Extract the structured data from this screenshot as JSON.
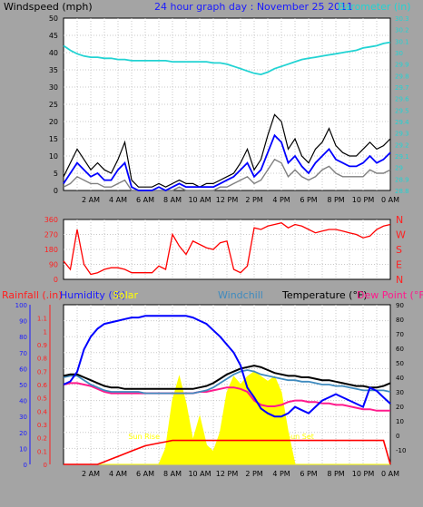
{
  "header": {
    "left_title": "Windspeed (mph)",
    "center_title": "24 hour graph day : November 25 2011",
    "right_title": "Barometer (in)"
  },
  "colors": {
    "background": "#a4a4a4",
    "plot_bg": "#ffffff",
    "grid": "#c8c8c8",
    "windspeed_gust": "#000000",
    "windspeed_avg": "#0000ff",
    "windspeed_low": "#808080",
    "barometer": "#22d3d3",
    "direction": "#ff0000",
    "temperature": "#000000",
    "humidity": "#0000ff",
    "windchill": "#3f8bbf",
    "dew_point": "#ff1a8c",
    "rainfall": "#ff0000",
    "solar": "#ffff00"
  },
  "x_ticks": [
    "2 AM",
    "4 AM",
    "6 AM",
    "8 AM",
    "10 AM",
    "12 PM",
    "2 PM",
    "4 PM",
    "6 PM",
    "8 PM",
    "10 PM",
    "0 AM"
  ],
  "chart_data": [
    {
      "type": "line",
      "title": "24 hour graph day : November 25 2011",
      "ylabel": "Windspeed (mph)",
      "y2label": "Barometer (in)",
      "ylim": [
        0,
        50
      ],
      "y2lim": [
        28.8,
        30.3
      ],
      "y_ticks": [
        "0",
        "5",
        "10",
        "15",
        "20",
        "25",
        "30",
        "35",
        "40",
        "45",
        "50"
      ],
      "y2_ticks": [
        "28.8",
        "28.9",
        "29",
        "29.1",
        "29.2",
        "29.3",
        "29.4",
        "29.5",
        "29.6",
        "29.7",
        "29.8",
        "29.9",
        "30",
        "30.1",
        "30.2",
        "30.3"
      ],
      "x_hours": [
        0,
        0.5,
        1,
        1.5,
        2,
        2.5,
        3,
        3.5,
        4,
        4.5,
        5,
        5.5,
        6,
        6.5,
        7,
        7.5,
        8,
        8.5,
        9,
        9.5,
        10,
        10.5,
        11,
        11.5,
        12,
        12.5,
        13,
        13.5,
        14,
        14.5,
        15,
        15.5,
        16,
        16.5,
        17,
        17.5,
        18,
        18.5,
        19,
        19.5,
        20,
        20.5,
        21,
        21.5,
        22,
        22.5,
        23,
        23.5,
        24
      ],
      "series": [
        {
          "name": "gust",
          "axis": "left",
          "values": [
            4,
            8,
            12,
            9,
            6,
            8,
            6,
            5,
            9,
            14,
            3,
            1,
            1,
            1,
            2,
            1,
            2,
            3,
            2,
            2,
            1,
            2,
            2,
            3,
            4,
            5,
            8,
            12,
            6,
            9,
            16,
            22,
            20,
            12,
            15,
            10,
            8,
            12,
            14,
            18,
            13,
            11,
            10,
            10,
            12,
            14,
            12,
            13,
            15
          ]
        },
        {
          "name": "average",
          "axis": "left",
          "values": [
            2,
            5,
            8,
            6,
            4,
            5,
            3,
            3,
            6,
            8,
            1,
            0,
            0,
            0,
            1,
            0,
            1,
            2,
            1,
            1,
            1,
            1,
            1,
            2,
            3,
            4,
            6,
            8,
            4,
            6,
            11,
            16,
            14,
            8,
            10,
            7,
            5,
            8,
            10,
            12,
            9,
            8,
            7,
            7,
            8,
            10,
            8,
            9,
            11
          ]
        },
        {
          "name": "low",
          "axis": "left",
          "values": [
            1,
            2,
            4,
            3,
            2,
            2,
            1,
            1,
            2,
            3,
            0,
            0,
            0,
            0,
            0,
            0,
            0,
            1,
            0,
            0,
            0,
            0,
            0,
            1,
            1,
            2,
            3,
            4,
            2,
            3,
            6,
            9,
            8,
            4,
            6,
            4,
            3,
            4,
            6,
            7,
            5,
            4,
            4,
            4,
            4,
            6,
            5,
            5,
            6
          ]
        },
        {
          "name": "barometer",
          "axis": "right",
          "values": [
            30.06,
            30.02,
            29.99,
            29.97,
            29.96,
            29.96,
            29.95,
            29.95,
            29.94,
            29.94,
            29.93,
            29.93,
            29.93,
            29.93,
            29.93,
            29.93,
            29.92,
            29.92,
            29.92,
            29.92,
            29.92,
            29.92,
            29.91,
            29.91,
            29.9,
            29.88,
            29.86,
            29.84,
            29.82,
            29.81,
            29.83,
            29.86,
            29.88,
            29.9,
            29.92,
            29.94,
            29.95,
            29.96,
            29.97,
            29.98,
            29.99,
            30,
            30.01,
            30.02,
            30.04,
            30.05,
            30.06,
            30.08,
            30.09
          ]
        }
      ]
    },
    {
      "type": "line",
      "ylim": [
        0,
        360
      ],
      "y_ticks": [
        "0",
        "90",
        "180",
        "270",
        "360"
      ],
      "compass_labels": [
        "N",
        "W",
        "S",
        "E",
        "N"
      ],
      "x_hours": [
        0,
        0.5,
        1,
        1.5,
        2,
        2.5,
        3,
        3.5,
        4,
        4.5,
        5,
        5.5,
        6,
        6.5,
        7,
        7.5,
        8,
        8.5,
        9,
        9.5,
        10,
        10.5,
        11,
        11.5,
        12,
        12.5,
        13,
        13.5,
        14,
        14.5,
        15,
        15.5,
        16,
        16.5,
        17,
        17.5,
        18,
        18.5,
        19,
        19.5,
        20,
        20.5,
        21,
        21.5,
        22,
        22.5,
        23,
        23.5,
        24
      ],
      "series": [
        {
          "name": "wind direction",
          "values": [
            110,
            60,
            300,
            90,
            30,
            40,
            60,
            70,
            70,
            60,
            40,
            40,
            40,
            40,
            80,
            60,
            270,
            200,
            150,
            230,
            210,
            190,
            180,
            220,
            230,
            60,
            40,
            80,
            310,
            300,
            320,
            330,
            340,
            310,
            330,
            320,
            300,
            280,
            290,
            300,
            300,
            290,
            280,
            270,
            250,
            260,
            300,
            320,
            330
          ]
        }
      ]
    },
    {
      "type": "line",
      "ylabel_left": "Rainfall (.in)",
      "ylabel_humidity": "Humidity (%)",
      "ylabel_solar": "Solar",
      "ylabel_windchill": "Windchill",
      "ylabel_right": "Temperature (°F)",
      "ylabel_dew": "Dew Point (°F)",
      "humidity_lim": [
        0,
        100
      ],
      "rain_lim": [
        0,
        1.2
      ],
      "temp_lim": [
        -20,
        90
      ],
      "humidity_ticks": [
        "0",
        "10",
        "20",
        "30",
        "40",
        "50",
        "60",
        "70",
        "80",
        "90",
        "100"
      ],
      "rain_ticks": [
        "0",
        "0.1",
        "0.2",
        "0.3",
        "0.4",
        "0.5",
        "0.6",
        "0.7",
        "0.8",
        "0.9",
        "1",
        "1.1"
      ],
      "temp_ticks": [
        "-10",
        "0",
        "10",
        "20",
        "30",
        "40",
        "50",
        "60",
        "70",
        "80",
        "90"
      ],
      "annotations": {
        "sunrise": "Sun Rise",
        "sunset": "Sun Set"
      },
      "sunrise_hour": 7.2,
      "sunset_hour": 16.6,
      "x_hours": [
        0,
        0.5,
        1,
        1.5,
        2,
        2.5,
        3,
        3.5,
        4,
        4.5,
        5,
        5.5,
        6,
        6.5,
        7,
        7.5,
        8,
        8.5,
        9,
        9.5,
        10,
        10.5,
        11,
        11.5,
        12,
        12.5,
        13,
        13.5,
        14,
        14.5,
        15,
        15.5,
        16,
        16.5,
        17,
        17.5,
        18,
        18.5,
        19,
        19.5,
        20,
        20.5,
        21,
        21.5,
        22,
        22.5,
        23,
        23.5,
        24
      ],
      "series": [
        {
          "name": "Temperature",
          "axis": "temp",
          "values": [
            41,
            42,
            42,
            40,
            38,
            36,
            34,
            33,
            33,
            32,
            32,
            32,
            32,
            32,
            32,
            32,
            32,
            32,
            32,
            32,
            33,
            34,
            36,
            39,
            42,
            44,
            46,
            47,
            48,
            47,
            45,
            43,
            42,
            41,
            41,
            40,
            40,
            39,
            38,
            38,
            37,
            36,
            35,
            34,
            34,
            33,
            33,
            34,
            36
          ]
        },
        {
          "name": "Humidity",
          "axis": "humidity",
          "values": [
            50,
            52,
            58,
            72,
            80,
            85,
            88,
            89,
            90,
            91,
            92,
            92,
            93,
            93,
            93,
            93,
            93,
            93,
            93,
            92,
            90,
            88,
            84,
            80,
            75,
            70,
            62,
            48,
            42,
            35,
            32,
            30,
            30,
            32,
            36,
            34,
            32,
            36,
            40,
            42,
            44,
            42,
            40,
            38,
            36,
            48,
            46,
            42,
            38
          ]
        },
        {
          "name": "Windchill",
          "axis": "temp",
          "values": [
            40,
            41,
            41,
            38,
            35,
            33,
            31,
            30,
            30,
            30,
            30,
            30,
            29,
            29,
            29,
            29,
            29,
            29,
            29,
            29,
            30,
            31,
            33,
            36,
            39,
            42,
            44,
            45,
            44,
            42,
            41,
            40,
            39,
            38,
            38,
            37,
            37,
            36,
            35,
            35,
            34,
            34,
            33,
            32,
            31,
            31,
            31,
            31,
            30
          ]
        },
        {
          "name": "Dew Point",
          "axis": "temp",
          "values": [
            35,
            36,
            36,
            35,
            34,
            32,
            30,
            29,
            29,
            29,
            29,
            29,
            29,
            29,
            29,
            29,
            29,
            29,
            29,
            29,
            30,
            30,
            31,
            32,
            33,
            33,
            32,
            30,
            24,
            21,
            20,
            20,
            21,
            23,
            24,
            24,
            23,
            23,
            22,
            22,
            21,
            21,
            20,
            19,
            18,
            18,
            17,
            17,
            17
          ]
        },
        {
          "name": "Rainfall",
          "axis": "rain",
          "values": [
            0,
            0,
            0,
            0,
            0,
            0,
            0.02,
            0.04,
            0.06,
            0.08,
            0.1,
            0.12,
            0.14,
            0.15,
            0.16,
            0.17,
            0.18,
            0.18,
            0.18,
            0.18,
            0.18,
            0.18,
            0.18,
            0.18,
            0.18,
            0.18,
            0.18,
            0.18,
            0.18,
            0.18,
            0.18,
            0.18,
            0.18,
            0.18,
            0.18,
            0.18,
            0.18,
            0.18,
            0.18,
            0.18,
            0.18,
            0.18,
            0.18,
            0.18,
            0.18,
            0.18,
            0.18,
            0.18,
            0
          ]
        },
        {
          "name": "Solar",
          "axis": "humidity",
          "values": [
            0,
            0,
            0,
            0,
            0,
            0,
            0,
            0,
            0,
            0,
            0,
            0,
            0,
            0,
            0,
            10,
            40,
            55,
            38,
            15,
            30,
            12,
            8,
            20,
            45,
            55,
            50,
            55,
            58,
            55,
            52,
            55,
            45,
            20,
            0,
            0,
            0,
            0,
            0,
            0,
            0,
            0,
            0,
            0,
            0,
            0,
            0,
            0,
            0
          ]
        }
      ]
    }
  ]
}
